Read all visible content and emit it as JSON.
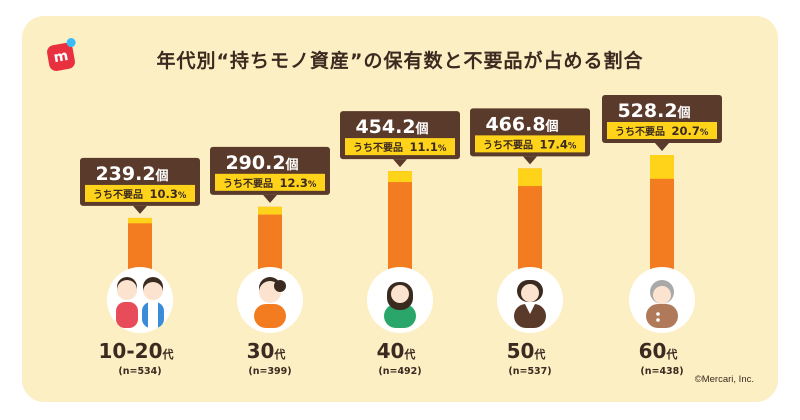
{
  "title": "年代別“持ちモノ資産”の保有数と不要品が占める割合",
  "logo": {
    "label": "m"
  },
  "copyright": "©Mercari, Inc.",
  "colors": {
    "background": "#FCEFC4",
    "bar": "#F47C20",
    "unwanted": "#FFD31A",
    "callout": "#5A3A2B",
    "text": "#3B2A20"
  },
  "chart_data": {
    "type": "bar",
    "title": "年代別“持ちモノ資産”の保有数と不要品が占める割合",
    "value_suffix": "個",
    "share_prefix": "うち不要品",
    "categories": [
      {
        "age": "10-20",
        "suffix": "代",
        "n": "(n=534)",
        "icon": "two-young-people-icon"
      },
      {
        "age": "30",
        "suffix": "代",
        "n": "(n=399)",
        "icon": "woman-with-bun-icon"
      },
      {
        "age": "40",
        "suffix": "代",
        "n": "(n=492)",
        "icon": "woman-long-hair-icon"
      },
      {
        "age": "50",
        "suffix": "代",
        "n": "(n=537)",
        "icon": "woman-bob-hair-icon"
      },
      {
        "age": "60",
        "suffix": "代",
        "n": "(n=438)",
        "icon": "elderly-woman-icon"
      }
    ],
    "values": [
      239.2,
      290.2,
      454.2,
      466.8,
      528.2
    ],
    "value_labels": [
      "239.2",
      "290.2",
      "454.2",
      "466.8",
      "528.2"
    ],
    "unwanted_share_percent": [
      10.3,
      12.3,
      11.1,
      17.4,
      20.7
    ],
    "unwanted_share_labels": [
      "10.3",
      "12.3",
      "11.1",
      "17.4",
      "20.7"
    ],
    "ylim": [
      0,
      528.2
    ]
  }
}
